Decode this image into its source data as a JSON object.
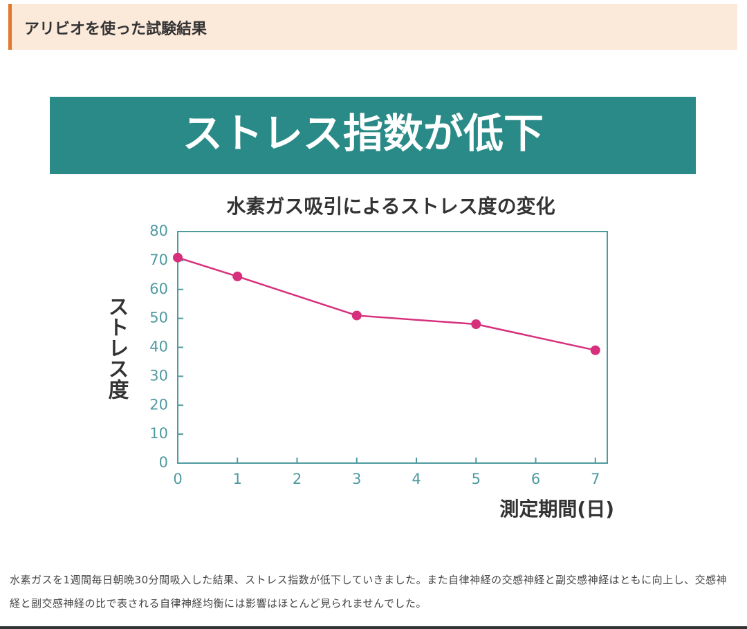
{
  "header": {
    "title": "アリビオを使った試験結果"
  },
  "banner": {
    "title": "ストレス指数が低下"
  },
  "chart_data": {
    "type": "line",
    "title": "水素ガス吸引によるストレス度の変化",
    "x_label": "測定期間(日)",
    "y_label": "ストレス度",
    "x": [
      0,
      1,
      3,
      5,
      7
    ],
    "series": [
      {
        "name": "ストレス度",
        "color": "#d6307c",
        "values": [
          71,
          64.5,
          51,
          48,
          39
        ]
      }
    ],
    "xlim": [
      0,
      7.2
    ],
    "xticks": [
      0,
      1,
      2,
      3,
      4,
      5,
      6,
      7
    ],
    "ylim": [
      0,
      80
    ],
    "yticks": [
      0,
      10,
      20,
      30,
      40,
      50,
      60,
      70,
      80
    ],
    "axis_color": "#4f9aa0",
    "grid": false,
    "legend": false
  },
  "caption": "水素ガスを1週間毎日朝晩30分間吸入した結果、ストレス指数が低下していきました。また自律神経の交感神経と副交感神経はともに向上し、交感神経と副交感神経の比で表される自律神経均衡には影響はほとんど見られませんでした。"
}
